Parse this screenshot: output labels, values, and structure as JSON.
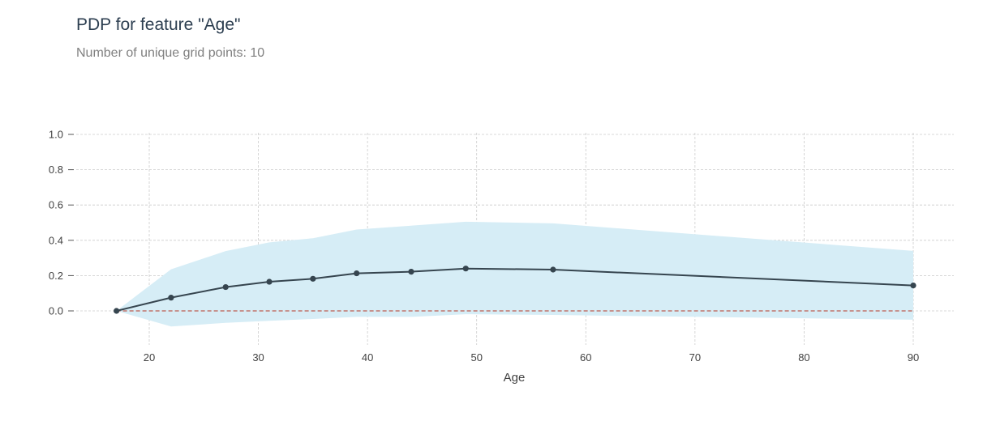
{
  "title": "PDP for feature \"Age\"",
  "subtitle": "Number of unique grid points: 10",
  "colors": {
    "line": "#36454f",
    "band": "#d6edf6",
    "zero_line": "#c0756b",
    "grid": "#cccccc",
    "title": "#2c3e50",
    "subtitle": "#808080",
    "text": "#424242"
  },
  "chart_data": {
    "type": "line",
    "title": "PDP for feature \"Age\"",
    "subtitle": "Number of unique grid points: 10",
    "xlabel": "Age",
    "ylabel": "",
    "xlim": [
      14,
      93.5
    ],
    "ylim": [
      -0.2,
      1.0
    ],
    "grid": true,
    "x_ticks": [
      20,
      30,
      40,
      50,
      60,
      70,
      80,
      90
    ],
    "y_ticks": [
      0.0,
      0.2,
      0.4,
      0.6,
      0.8,
      1.0
    ],
    "x_tick_labels": [
      "20",
      "30",
      "40",
      "50",
      "60",
      "70",
      "80",
      "90"
    ],
    "y_tick_labels": [
      "0.0",
      "0.2",
      "0.4",
      "0.6",
      "0.8",
      "1.0"
    ],
    "reference_line": {
      "y": 0.0,
      "style": "dashed"
    },
    "series": [
      {
        "x": [
          17,
          22,
          27,
          31,
          35,
          39,
          44,
          49,
          57,
          90
        ],
        "values": [
          0.0,
          0.075,
          0.135,
          0.165,
          0.182,
          0.213,
          0.222,
          0.24,
          0.234,
          0.144
        ],
        "upper": [
          0.0,
          0.236,
          0.339,
          0.388,
          0.412,
          0.461,
          0.483,
          0.505,
          0.496,
          0.34
        ],
        "lower": [
          0.0,
          -0.088,
          -0.068,
          -0.056,
          -0.046,
          -0.034,
          -0.034,
          -0.019,
          -0.023,
          -0.05
        ]
      }
    ]
  }
}
